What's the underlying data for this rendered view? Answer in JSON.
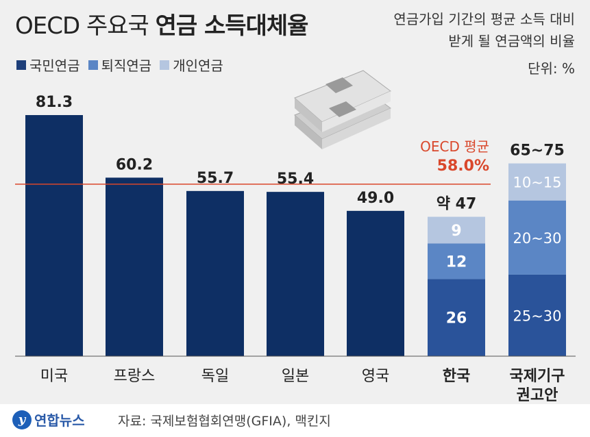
{
  "header": {
    "title_light": "OECD 주요국",
    "title_bold": "연금 소득대체율",
    "subtitle_line1": "연금가입 기간의 평균 소득 대비",
    "subtitle_line2": "받게 될 연금액의 비율",
    "unit": "단위: %"
  },
  "legend": [
    {
      "label": "국민연금",
      "color": "#1e3f7a"
    },
    {
      "label": "퇴직연금",
      "color": "#5b86c5"
    },
    {
      "label": "개인연금",
      "color": "#b5c6e0"
    }
  ],
  "footer": {
    "logo_text": "연합뉴스",
    "source": "자료: 국제보험협회연맹(GFIA), 맥킨지"
  },
  "chart_data": {
    "type": "bar",
    "title": "OECD 주요국 연금 소득대체율",
    "ylabel": "단위: %",
    "ylim": [
      0,
      90
    ],
    "categories": [
      "미국",
      "프랑스",
      "독일",
      "일본",
      "영국",
      "한국",
      "국제기구 권고안"
    ],
    "single_values": [
      {
        "category": "미국",
        "value": 81.3,
        "label": "81.3"
      },
      {
        "category": "프랑스",
        "value": 60.2,
        "label": "60.2"
      },
      {
        "category": "독일",
        "value": 55.7,
        "label": "55.7"
      },
      {
        "category": "일본",
        "value": 55.4,
        "label": "55.4"
      },
      {
        "category": "영국",
        "value": 49.0,
        "label": "49.0"
      }
    ],
    "stacked": [
      {
        "category": "한국",
        "total_label": "약 47",
        "segments": [
          {
            "series": "국민연금",
            "value": 26,
            "label": "26"
          },
          {
            "series": "퇴직연금",
            "value": 12,
            "label": "12"
          },
          {
            "series": "개인연금",
            "value": 9,
            "label": "9"
          }
        ]
      },
      {
        "category": "국제기구 권고안",
        "total_label": "65~75",
        "segments": [
          {
            "series": "국민연금",
            "value": 27.5,
            "label": "25~30"
          },
          {
            "series": "퇴직연금",
            "value": 25,
            "label": "20~30"
          },
          {
            "series": "개인연금",
            "value": 12.5,
            "label": "10~15"
          }
        ]
      }
    ],
    "reference_line": {
      "value": 58.0,
      "label_line1": "OECD 평균",
      "label_line2": "58.0%",
      "color": "#d9472b"
    },
    "category_labels": [
      {
        "line1": "미국",
        "line2": "",
        "bold": false
      },
      {
        "line1": "프랑스",
        "line2": "",
        "bold": false
      },
      {
        "line1": "독일",
        "line2": "",
        "bold": false
      },
      {
        "line1": "일본",
        "line2": "",
        "bold": false
      },
      {
        "line1": "영국",
        "line2": "",
        "bold": false
      },
      {
        "line1": "한국",
        "line2": "",
        "bold": true
      },
      {
        "line1": "국제기구",
        "line2": "권고안",
        "bold": true
      }
    ]
  },
  "colors": {
    "main_bar": "#0e2f64",
    "korea_national": "#2a539a",
    "retirement": "#5b86c5",
    "personal": "#b5c6e0",
    "panel_bg": "#f0f0f0"
  }
}
